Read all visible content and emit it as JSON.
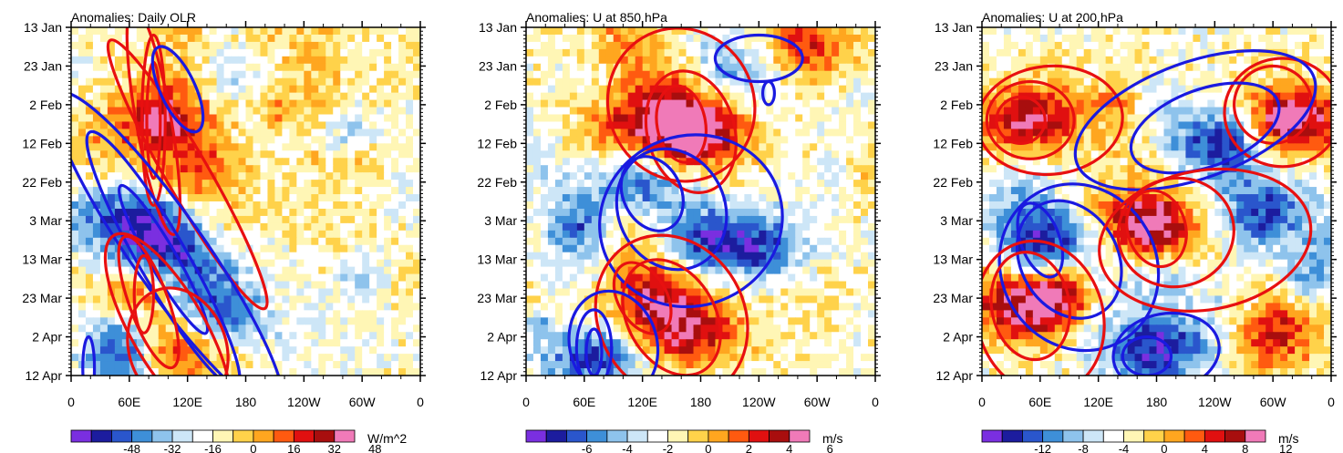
{
  "chart_data": [
    {
      "type": "heatmap",
      "title": "Anomalies: Daily OLR",
      "x_ticks": [
        "0",
        "60E",
        "120E",
        "180",
        "120W",
        "60W",
        "0"
      ],
      "x_range": [
        0,
        360
      ],
      "y_ticks": [
        "13 Jan",
        "23 Jan",
        "2 Feb",
        "12 Feb",
        "22 Feb",
        "3 Mar",
        "13 Mar",
        "23 Mar",
        "2 Apr",
        "12 Apr"
      ],
      "y_range_days": [
        0,
        90
      ],
      "colorbar": {
        "labels": [
          "-48",
          "-32",
          "-16",
          "0",
          "16",
          "32",
          "48"
        ],
        "units": "W/m^2",
        "range": [
          -56,
          56
        ]
      },
      "features": [
        {
          "lon": 95,
          "day": 23,
          "amp": 40
        },
        {
          "lon": 130,
          "day": 37,
          "amp": 28
        },
        {
          "lon": 70,
          "day": 48,
          "amp": -36
        },
        {
          "lon": 90,
          "day": 57,
          "amp": -38
        },
        {
          "lon": 120,
          "day": 66,
          "amp": -34
        },
        {
          "lon": 155,
          "day": 75,
          "amp": -30
        },
        {
          "lon": 80,
          "day": 68,
          "amp": 42
        },
        {
          "lon": 110,
          "day": 84,
          "amp": 40
        },
        {
          "lon": 260,
          "day": 30,
          "amp": -10
        },
        {
          "lon": 320,
          "day": 50,
          "amp": 8
        }
      ],
      "contours": [
        {
          "sign": "pos",
          "rings": [
            [
              85,
              24,
              7,
              15,
              0
            ],
            [
              85,
              24,
              12,
              22,
              0
            ],
            [
              85,
              24,
              18,
              30,
              -10
            ],
            [
              120,
              38,
              22,
              40,
              -30
            ]
          ]
        },
        {
          "sign": "neg",
          "rings": [
            [
              110,
              16,
              18,
              12,
              -25
            ],
            [
              95,
              60,
              14,
              22,
              -30
            ],
            [
              95,
              60,
              25,
              38,
              -30
            ],
            [
              100,
              58,
              38,
              50,
              -35
            ]
          ]
        },
        {
          "sign": "pos",
          "rings": [
            [
              75,
              69,
              10,
              10,
              0
            ],
            [
              80,
              71,
              20,
              18,
              -20
            ],
            [
              100,
              78,
              38,
              28,
              -30
            ],
            [
              110,
              83,
              50,
              16,
              -20
            ]
          ]
        },
        {
          "sign": "neg",
          "rings": [
            [
              18,
              88,
              6,
              8,
              0
            ]
          ]
        }
      ]
    },
    {
      "type": "heatmap",
      "title": "Anomalies: U at 850 hPa",
      "x_ticks": [
        "0",
        "60E",
        "120E",
        "180",
        "120W",
        "60W",
        "0"
      ],
      "x_range": [
        0,
        360
      ],
      "y_ticks": [
        "13 Jan",
        "23 Jan",
        "2 Feb",
        "12 Feb",
        "22 Feb",
        "3 Mar",
        "13 Mar",
        "23 Mar",
        "2 Apr",
        "12 Apr"
      ],
      "y_range_days": [
        0,
        90
      ],
      "colorbar": {
        "labels": [
          "-6",
          "-4",
          "-2",
          "0",
          "2",
          "4",
          "6"
        ],
        "units": "m/s",
        "range": [
          -7,
          7
        ]
      },
      "features": [
        {
          "lon": 150,
          "day": 24,
          "amp": 5
        },
        {
          "lon": 180,
          "day": 28,
          "amp": 5
        },
        {
          "lon": 110,
          "day": 40,
          "amp": -5
        },
        {
          "lon": 180,
          "day": 55,
          "amp": -5
        },
        {
          "lon": 250,
          "day": 57,
          "amp": -4
        },
        {
          "lon": 130,
          "day": 70,
          "amp": 5
        },
        {
          "lon": 170,
          "day": 80,
          "amp": 6
        },
        {
          "lon": 70,
          "day": 85,
          "amp": -5
        },
        {
          "lon": 280,
          "day": 5,
          "amp": 3
        }
      ],
      "contours": [
        {
          "sign": "pos",
          "rings": [
            [
              160,
              25,
              25,
              10,
              -10
            ],
            [
              170,
              27,
              45,
              16,
              -15
            ],
            [
              160,
              20,
              75,
              20,
              -25
            ]
          ]
        },
        {
          "sign": "neg",
          "rings": [
            [
              240,
              8,
              45,
              6,
              0
            ],
            [
              250,
              17,
              6,
              3,
              0
            ]
          ]
        },
        {
          "sign": "neg",
          "rings": [
            [
              130,
              43,
              30,
              10,
              -25
            ],
            [
              150,
              47,
              55,
              16,
              -25
            ],
            [
              170,
              50,
              95,
              22,
              -20
            ]
          ]
        },
        {
          "sign": "pos",
          "rings": [
            [
              120,
              70,
              25,
              10,
              -30
            ],
            [
              150,
              75,
              45,
              16,
              -30
            ],
            [
              150,
              75,
              75,
              22,
              -30
            ]
          ]
        },
        {
          "sign": "neg",
          "rings": [
            [
              70,
              84,
              8,
              6,
              0
            ],
            [
              70,
              83,
              18,
              10,
              0
            ],
            [
              90,
              82,
              45,
              14,
              -15
            ]
          ]
        }
      ]
    },
    {
      "type": "heatmap",
      "title": "Anomalies: U at 200 hPa",
      "x_ticks": [
        "0",
        "60E",
        "120E",
        "180",
        "120W",
        "60W",
        "0"
      ],
      "x_range": [
        0,
        360
      ],
      "y_ticks": [
        "13 Jan",
        "23 Jan",
        "2 Feb",
        "12 Feb",
        "22 Feb",
        "3 Mar",
        "13 Mar",
        "23 Mar",
        "2 Apr",
        "12 Apr"
      ],
      "y_range_days": [
        0,
        90
      ],
      "colorbar": {
        "labels": [
          "-12",
          "-8",
          "-4",
          "0",
          "4",
          "8",
          "12"
        ],
        "units": "m/s",
        "range": [
          -14,
          14
        ]
      },
      "features": [
        {
          "lon": 50,
          "day": 24,
          "amp": 12
        },
        {
          "lon": 320,
          "day": 25,
          "amp": 10
        },
        {
          "lon": 250,
          "day": 30,
          "amp": -10
        },
        {
          "lon": 60,
          "day": 55,
          "amp": -12
        },
        {
          "lon": 180,
          "day": 52,
          "amp": 12
        },
        {
          "lon": 290,
          "day": 48,
          "amp": -10
        },
        {
          "lon": 40,
          "day": 72,
          "amp": 12
        },
        {
          "lon": 180,
          "day": 83,
          "amp": -12
        },
        {
          "lon": 300,
          "day": 78,
          "amp": 10
        }
      ],
      "contours": [
        {
          "sign": "pos",
          "rings": [
            [
              40,
              24,
              25,
              6,
              0
            ],
            [
              50,
              24,
              45,
              10,
              0
            ],
            [
              70,
              24,
              75,
              14,
              -5
            ]
          ]
        },
        {
          "sign": "pos",
          "rings": [
            [
              300,
              20,
              40,
              10,
              0
            ],
            [
              310,
              22,
              60,
              14,
              0
            ]
          ]
        },
        {
          "sign": "neg",
          "rings": [
            [
              230,
              26,
              80,
              10,
              -20
            ],
            [
              220,
              24,
              130,
              15,
              -20
            ]
          ]
        },
        {
          "sign": "neg",
          "rings": [
            [
              60,
              55,
              20,
              10,
              -20
            ],
            [
              90,
              60,
              50,
              16,
              -30
            ],
            [
              100,
              62,
              80,
              22,
              -30
            ]
          ]
        },
        {
          "sign": "pos",
          "rings": [
            [
              180,
              52,
              30,
              10,
              -15
            ],
            [
              200,
              53,
              60,
              14,
              -15
            ],
            [
              230,
              55,
              110,
              18,
              -10
            ]
          ]
        },
        {
          "sign": "pos",
          "rings": [
            [
              50,
              72,
              40,
              14,
              -10
            ],
            [
              60,
              75,
              65,
              20,
              -15
            ]
          ]
        },
        {
          "sign": "neg",
          "rings": [
            [
              170,
              85,
              25,
              5,
              0
            ],
            [
              190,
              84,
              55,
              10,
              -10
            ]
          ]
        }
      ]
    }
  ]
}
